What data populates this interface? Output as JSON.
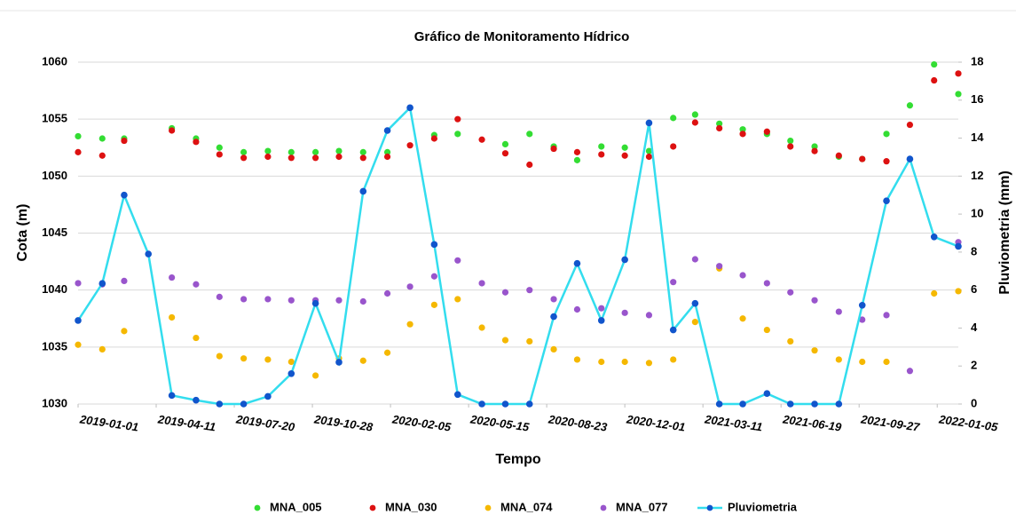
{
  "chart_data": {
    "type": "combo",
    "title": "Gráfico de Monitoramento Hídrico",
    "x_label": "Tempo",
    "y_label": "Cota (m)",
    "y2_label": "Pluviometria (mm)",
    "x": [
      "2019-01-01",
      "2019-02-01",
      "2019-03-01",
      "2019-04-01",
      "2019-05-01",
      "2019-06-01",
      "2019-07-01",
      "2019-08-01",
      "2019-09-01",
      "2019-10-01",
      "2019-11-01",
      "2019-12-01",
      "2020-01-01",
      "2020-02-01",
      "2020-03-01",
      "2020-04-01",
      "2020-05-01",
      "2020-06-01",
      "2020-07-01",
      "2020-08-01",
      "2020-09-01",
      "2020-10-01",
      "2020-11-01",
      "2020-12-01",
      "2021-01-01",
      "2021-02-01",
      "2021-03-01",
      "2021-04-01",
      "2021-05-01",
      "2021-06-01",
      "2021-07-01",
      "2021-08-01",
      "2021-09-01",
      "2021-10-01",
      "2021-11-01",
      "2021-12-01",
      "2022-01-01",
      "2022-02-01"
    ],
    "xlim": [
      "2019-01-01",
      "2022-02-01"
    ],
    "xticks": [
      "2019-01-01",
      "2019-04-11",
      "2019-07-20",
      "2019-10-28",
      "2020-02-05",
      "2020-05-15",
      "2020-08-23",
      "2020-12-01",
      "2021-03-11",
      "2021-06-19",
      "2021-09-27",
      "2022-01-05"
    ],
    "ylim": [
      1030,
      1060
    ],
    "yticks": [
      1030,
      1035,
      1040,
      1045,
      1050,
      1055,
      1060
    ],
    "y2lim": [
      0,
      18
    ],
    "y2ticks": [
      0,
      2,
      4,
      6,
      8,
      10,
      12,
      14,
      16,
      18
    ],
    "grid": true,
    "legend": "bottom",
    "series": [
      {
        "name": "MNA_005",
        "type": "scatter",
        "color": "#33dd33",
        "values": [
          1053.5,
          1053.3,
          1053.3,
          null,
          1054.2,
          1053.3,
          1052.5,
          1052.1,
          1052.2,
          1052.1,
          1052.1,
          1052.2,
          1052.1,
          1052.1,
          null,
          1053.6,
          1053.7,
          null,
          1052.8,
          1053.7,
          1052.6,
          1051.4,
          1052.6,
          1052.5,
          1052.2,
          1055.1,
          1055.4,
          1054.6,
          1054.1,
          1053.7,
          1053.1,
          1052.6,
          1051.7,
          1051.5,
          1053.7,
          1056.2,
          1059.8,
          1057.2
        ]
      },
      {
        "name": "MNA_030",
        "type": "scatter",
        "color": "#dd1111",
        "values": [
          1052.1,
          1051.8,
          1053.1,
          null,
          1054.0,
          1053.0,
          1051.9,
          1051.6,
          1051.7,
          1051.6,
          1051.6,
          1051.7,
          1051.6,
          1051.7,
          1052.7,
          1053.3,
          1055.0,
          1053.2,
          1052.0,
          1051.0,
          1052.4,
          1052.1,
          1051.9,
          1051.8,
          1051.7,
          1052.6,
          1054.7,
          1054.2,
          1053.7,
          1053.9,
          1052.6,
          1052.2,
          1051.8,
          1051.5,
          1051.3,
          1054.5,
          1058.4,
          1059.0
        ]
      },
      {
        "name": "MNA_074",
        "type": "scatter",
        "color": "#f5b800",
        "values": [
          1035.2,
          1034.8,
          1036.4,
          null,
          1037.6,
          1035.8,
          1034.2,
          1034.0,
          1033.9,
          1033.7,
          1032.5,
          1034.0,
          1033.8,
          1034.5,
          1037.0,
          1038.7,
          1039.2,
          1036.7,
          1035.6,
          1035.5,
          1034.8,
          1033.9,
          1033.7,
          1033.7,
          1033.6,
          1033.9,
          1037.2,
          1041.9,
          1037.5,
          1036.5,
          1035.5,
          1034.7,
          1033.9,
          1033.7,
          1033.7,
          null,
          1039.7,
          1039.9
        ]
      },
      {
        "name": "MNA_077",
        "type": "scatter",
        "color": "#9955cc",
        "values": [
          1040.6,
          1040.5,
          1040.8,
          null,
          1041.1,
          1040.5,
          1039.4,
          1039.2,
          1039.2,
          1039.1,
          1039.1,
          1039.1,
          1039.0,
          1039.7,
          1040.3,
          1041.2,
          1042.6,
          1040.6,
          1039.8,
          1040.0,
          1039.2,
          1038.3,
          1038.4,
          1038.0,
          1037.8,
          1040.7,
          1042.7,
          1042.1,
          1041.3,
          1040.6,
          1039.8,
          1039.1,
          1038.1,
          1037.4,
          1037.8,
          1032.9,
          null,
          1044.2
        ]
      },
      {
        "name": "Pluviometria",
        "type": "line",
        "axis": "y2",
        "color": "#33ddee",
        "marker_color": "#1155cc",
        "values": [
          4.4,
          6.35,
          11.0,
          7.9,
          0.45,
          0.2,
          0,
          0,
          0.4,
          1.6,
          5.3,
          2.2,
          11.2,
          14.4,
          15.6,
          8.4,
          0.5,
          0,
          0,
          0,
          4.6,
          7.4,
          4.4,
          7.6,
          14.8,
          3.9,
          5.3,
          0,
          0,
          0.55,
          0,
          0,
          0,
          5.2,
          10.7,
          12.9,
          8.8,
          8.3
        ]
      }
    ]
  }
}
